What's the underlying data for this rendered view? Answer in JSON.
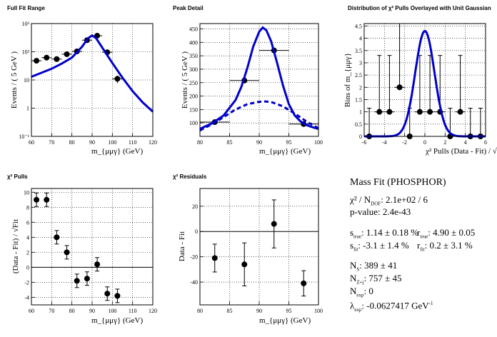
{
  "colors": {
    "fit": "#0000cc",
    "data": "#000000",
    "grid": "#000000",
    "background": "#ffffff"
  },
  "chart_data": [
    {
      "type": "scatter",
      "title": "Full Fit Range",
      "xlabel": "m_{μμγ} (GeV)",
      "ylabel": "Events / ( 5 GeV )",
      "yscale": "log",
      "xlim": [
        60,
        120
      ],
      "ylim": [
        0.1,
        1000
      ],
      "grid": true,
      "x_ticks": [
        "60",
        "70",
        "80",
        "90",
        "100",
        "110",
        "120"
      ],
      "y_ticks": [
        "10⁻¹",
        "1",
        "10",
        "10²",
        "10³"
      ],
      "series": [
        {
          "name": "",
          "kind": "data",
          "x": [
            62.5,
            67.5,
            72.5,
            77.5,
            82.5,
            87.5,
            92.5,
            97.5,
            102.5
          ],
          "y": [
            48,
            62,
            55,
            82,
            103,
            258,
            370,
            96,
            11
          ],
          "xerr": 2.5
        },
        {
          "name": "",
          "kind": "fit",
          "style": "solid",
          "x": [
            60,
            65,
            70,
            75,
            80,
            85,
            88,
            90,
            92,
            95,
            100,
            105,
            110,
            115,
            120
          ],
          "y": [
            13,
            18,
            25,
            38,
            62,
            150,
            300,
            380,
            300,
            140,
            40,
            12,
            4,
            1.6,
            0.75
          ]
        }
      ]
    },
    {
      "type": "scatter",
      "title": "Peak Detail",
      "xlabel": "m_{μμγ} (GeV)",
      "ylabel": "Events / ( 5 GeV )",
      "xlim": [
        80,
        100
      ],
      "ylim": [
        50,
        470
      ],
      "grid": true,
      "x_ticks": [
        "80",
        "85",
        "90",
        "95",
        "100"
      ],
      "y_ticks": [
        "100",
        "150",
        "200",
        "250",
        "300",
        "350",
        "400",
        "450"
      ],
      "series": [
        {
          "name": "",
          "kind": "data",
          "x": [
            82.5,
            87.5,
            92.5,
            97.5
          ],
          "y": [
            103,
            258,
            370,
            96
          ],
          "xerr": 2.5
        },
        {
          "name": "",
          "kind": "fit",
          "style": "solid",
          "x": [
            80,
            82,
            84,
            86,
            87,
            88,
            89,
            90,
            90.6,
            91.2,
            92,
            93,
            94,
            95,
            96,
            97,
            98,
            99,
            100
          ],
          "y": [
            78,
            98,
            128,
            185,
            235,
            305,
            385,
            440,
            455,
            445,
            405,
            325,
            240,
            170,
            128,
            105,
            92,
            84,
            78
          ]
        },
        {
          "name": "",
          "kind": "fit",
          "style": "dashed",
          "x": [
            80,
            82,
            84,
            86,
            88,
            90,
            91,
            92,
            94,
            96,
            98,
            100
          ],
          "y": [
            72,
            95,
            122,
            150,
            170,
            179,
            180,
            178,
            162,
            135,
            105,
            80
          ]
        }
      ]
    },
    {
      "type": "scatter",
      "title": "Distribution of χ² Pulls Overlayed with Unit Gaussian",
      "xlabel": "χ² Pulls (Data - Fit) / √Fit",
      "ylabel": "Bins of m_{μμγ}",
      "xlim": [
        -6,
        6
      ],
      "ylim": [
        0,
        4.6
      ],
      "grid": true,
      "x_ticks": [
        "-6",
        "-4",
        "-2",
        "0",
        "2",
        "4",
        "6"
      ],
      "y_ticks": [
        "0",
        "0.5",
        "1",
        "1.5",
        "2",
        "2.5",
        "3",
        "3.5",
        "4",
        "4.5"
      ],
      "series": [
        {
          "name": "",
          "kind": "data",
          "x": [
            -5.5,
            -4.5,
            -3.5,
            -2.5,
            -1.5,
            -0.5,
            0.5,
            1.5,
            2.5,
            3.5,
            4.5,
            5.5
          ],
          "y": [
            0,
            1,
            1,
            2,
            0,
            1,
            1,
            1,
            0,
            1,
            0,
            0
          ],
          "yerr_up": [
            1.15,
            2.3,
            2.3,
            2.6,
            1.15,
            2.3,
            2.3,
            2.3,
            1.15,
            2.3,
            1.15,
            1.15
          ],
          "xerr": 0.5
        },
        {
          "name": "",
          "kind": "fit",
          "style": "solid",
          "function": "gaussian",
          "mean": 0,
          "sigma": 0.95,
          "amplitude": 4.3
        }
      ]
    },
    {
      "type": "scatter",
      "title": "χ² Pulls",
      "xlabel": "m_{μμγ} (GeV)",
      "ylabel": "(Data - Fit) / √Fit",
      "xlim": [
        60,
        120
      ],
      "ylim": [
        -5,
        10.5
      ],
      "grid": true,
      "x_ticks": [
        "60",
        "70",
        "80",
        "90",
        "100",
        "110",
        "120"
      ],
      "y_ticks": [
        "-4",
        "-2",
        "0",
        "2",
        "4",
        "6",
        "8",
        "10"
      ],
      "series": [
        {
          "name": "",
          "kind": "data",
          "x": [
            62.5,
            67.5,
            72.5,
            77.5,
            82.5,
            87.5,
            92.5,
            97.5,
            102.5
          ],
          "y": [
            9,
            9,
            4,
            2,
            -1.8,
            -1.5,
            0.4,
            -3.5,
            -3.8
          ],
          "yerr": 0.9
        }
      ]
    },
    {
      "type": "scatter",
      "title": "χ² Residuals",
      "xlabel": "m_{μμγ} (GeV)",
      "ylabel": "Data - Fit",
      "xlim": [
        80,
        100
      ],
      "ylim": [
        -58,
        34
      ],
      "grid": true,
      "x_ticks": [
        "80",
        "85",
        "90",
        "95",
        "100"
      ],
      "y_ticks": [
        "-40",
        "-20",
        "0",
        "20"
      ],
      "series": [
        {
          "name": "",
          "kind": "data",
          "x": [
            82.5,
            87.5,
            92.5,
            97.5
          ],
          "y": [
            -21,
            -26,
            6,
            -41
          ],
          "yerr": [
            11,
            17,
            19,
            10
          ]
        }
      ]
    }
  ],
  "fit_results": {
    "title": "Mass Fit (PHOSPHOR)",
    "chi2": "χ² / N",
    "chi2_sub": "DOF",
    "chi2_value": ": 2.1e+02 / 6",
    "pvalue": "p-value: 2.4e-43",
    "s_true_label": "s",
    "s_true_sub": "true",
    "s_true_value": ": 1.14 ± 0.18 %",
    "s_fit_label": "s",
    "s_fit_sub": "fit",
    "s_fit_value": ": -3.1 ± 1.4 %",
    "r_true_label": "r",
    "r_true_sub": "true",
    "r_true_value": ": 4.90 ± 0.05",
    "r_fit_label": "r",
    "r_fit_sub": "fit",
    "r_fit_value": ": 0.2 ± 3.1 %",
    "ns_label": "N",
    "ns_sub": "S",
    "ns_value": ": 389 ± 41",
    "nzj_label": "N",
    "nzj_sub": "Z+j",
    "nzj_value": ": 757 ± 45",
    "nexp_label": "N",
    "nexp_sub": "exp",
    "nexp_value": ": 0",
    "lexp_label": "λ",
    "lexp_sub": "exp",
    "lexp_value": ": -0.0627417 GeV",
    "lexp_sup": "-1"
  }
}
